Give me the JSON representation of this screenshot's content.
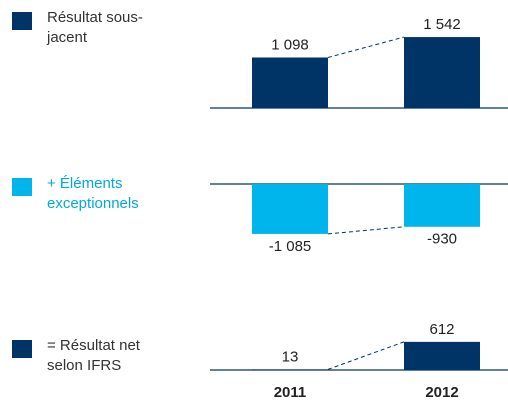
{
  "chart_data": [
    {
      "type": "bar",
      "legend_text_color": "#333333",
      "series": [
        {
          "name": "Résultat sous-jacent",
          "color": "#003466",
          "values": [
            1098,
            1542
          ],
          "value_labels": [
            "1 098",
            "1 542"
          ]
        }
      ]
    },
    {
      "type": "bar",
      "legend_text_color": "#00a8e0",
      "series": [
        {
          "name": "+ Éléments exceptionnels",
          "color": "#00b4ec",
          "values": [
            -1085,
            -930
          ],
          "value_labels": [
            "-1 085",
            "-930"
          ]
        }
      ]
    },
    {
      "type": "bar",
      "legend_text_color": "#333333",
      "categories": [
        "2011",
        "2012"
      ],
      "series": [
        {
          "name": "= Résultat net selon IFRS",
          "color": "#003466",
          "values": [
            13,
            612
          ],
          "value_labels": [
            "13",
            "612"
          ]
        }
      ]
    }
  ]
}
